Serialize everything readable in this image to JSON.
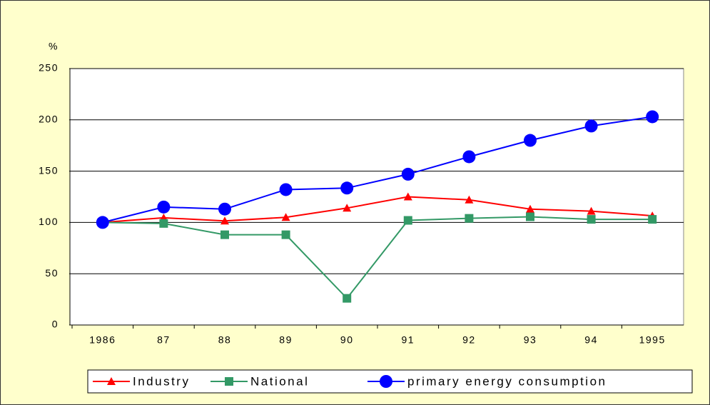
{
  "chart_data": {
    "type": "line",
    "y_label": "%",
    "categories": [
      "1986",
      "87",
      "88",
      "89",
      "90",
      "91",
      "92",
      "93",
      "94",
      "1995"
    ],
    "series": [
      {
        "name": "Industry",
        "color": "#ff0000",
        "marker": "triangle",
        "values": [
          100,
          104.5,
          101.5,
          105,
          114,
          125,
          122,
          113,
          111,
          106.5
        ]
      },
      {
        "name": "National",
        "color": "#339966",
        "marker": "square",
        "values": [
          100,
          99,
          88,
          88,
          26,
          102,
          104,
          105.5,
          103,
          103
        ]
      },
      {
        "name": "primary energy consumption",
        "color": "#0000ff",
        "marker": "circle",
        "values": [
          100,
          115,
          113,
          132,
          133.5,
          147,
          164,
          180,
          194,
          203
        ]
      }
    ],
    "ylim": [
      0,
      250
    ],
    "yticks": [
      0,
      50,
      100,
      150,
      200,
      250
    ],
    "grid": true
  }
}
